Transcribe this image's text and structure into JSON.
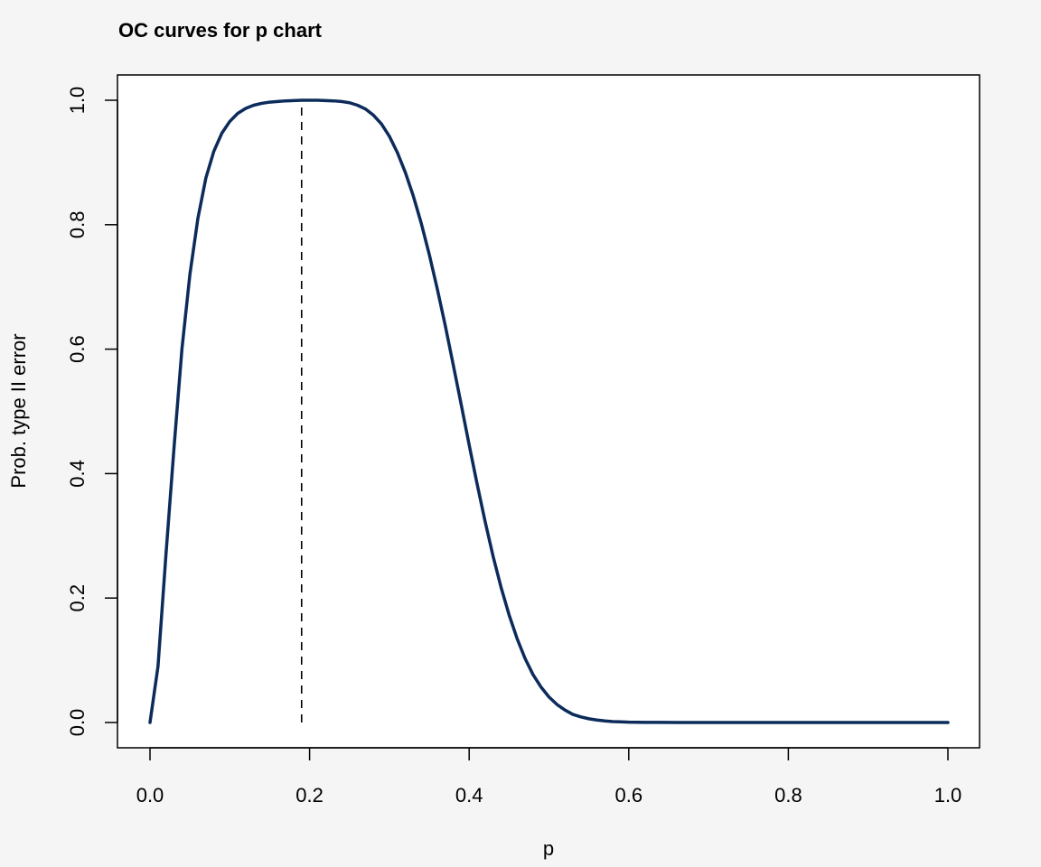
{
  "chart_data": {
    "type": "line",
    "title": "OC curves for p chart",
    "xlabel": "p",
    "ylabel": "Prob. type II error",
    "xlim": [
      0,
      1
    ],
    "ylim": [
      0,
      1
    ],
    "grid": false,
    "legend": "none",
    "x_ticks": [
      "0.0",
      "0.2",
      "0.4",
      "0.6",
      "0.8",
      "1.0"
    ],
    "y_ticks": [
      "0.0",
      "0.2",
      "0.4",
      "0.6",
      "0.8",
      "1.0"
    ],
    "series": [
      {
        "color": "#0c2b5b",
        "x": [
          0.0,
          0.01,
          0.02,
          0.03,
          0.04,
          0.05,
          0.06,
          0.07,
          0.08,
          0.09,
          0.1,
          0.11,
          0.12,
          0.13,
          0.14,
          0.15,
          0.16,
          0.17,
          0.18,
          0.19,
          0.2,
          0.21,
          0.22,
          0.23,
          0.24,
          0.25,
          0.26,
          0.27,
          0.28,
          0.29,
          0.3,
          0.31,
          0.32,
          0.33,
          0.34,
          0.35,
          0.36,
          0.37,
          0.38,
          0.39,
          0.4,
          0.41,
          0.42,
          0.43,
          0.44,
          0.45,
          0.46,
          0.47,
          0.48,
          0.49,
          0.5,
          0.51,
          0.52,
          0.53,
          0.54,
          0.55,
          0.56,
          0.57,
          0.58,
          0.59,
          0.6,
          0.62,
          0.64,
          0.66,
          0.68,
          0.7,
          0.75,
          0.8,
          0.85,
          0.9,
          0.95,
          1.0
        ],
        "y": [
          0.0,
          0.09,
          0.27,
          0.44,
          0.6,
          0.72,
          0.81,
          0.875,
          0.918,
          0.947,
          0.966,
          0.979,
          0.987,
          0.992,
          0.995,
          0.997,
          0.998,
          0.999,
          0.9995,
          1.0,
          1.0,
          1.0,
          0.9995,
          0.999,
          0.998,
          0.996,
          0.992,
          0.986,
          0.976,
          0.962,
          0.942,
          0.916,
          0.884,
          0.846,
          0.802,
          0.752,
          0.697,
          0.638,
          0.575,
          0.511,
          0.446,
          0.383,
          0.323,
          0.267,
          0.217,
          0.173,
          0.135,
          0.103,
          0.077,
          0.057,
          0.041,
          0.029,
          0.02,
          0.013,
          0.009,
          0.006,
          0.004,
          0.0025,
          0.0015,
          0.001,
          0.0005,
          0.0002,
          0.0001,
          0.0,
          0.0,
          0.0,
          0.0,
          0.0,
          0.0,
          0.0,
          0.0,
          0.0
        ]
      }
    ],
    "reference_line": {
      "x": 0.19,
      "style": "dashed",
      "color": "#000000"
    }
  }
}
